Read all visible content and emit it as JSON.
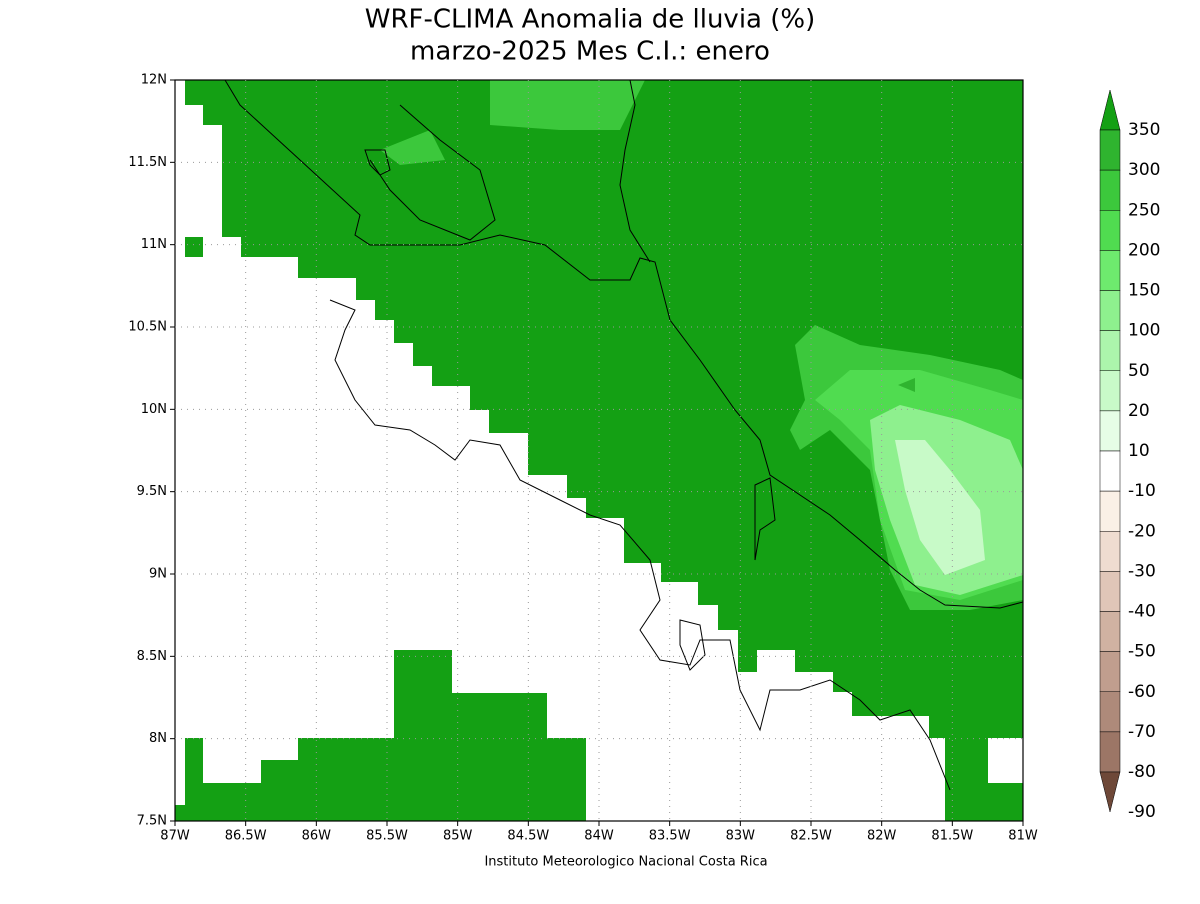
{
  "title": [
    "WRF-CLIMA Anomalia de lluvia (%)",
    "marzo-2025 Mes C.I.: enero"
  ],
  "map": {
    "lon_labels": [
      "87W",
      "86.5W",
      "86W",
      "85.5W",
      "85W",
      "84.5W",
      "84W",
      "83.5W",
      "83W",
      "82.5W",
      "82W",
      "81.5W",
      "81W"
    ],
    "lat_labels": [
      "12N",
      "11.5N",
      "11N",
      "10.5N",
      "10N",
      "9.5N",
      "9N",
      "8.5N",
      "8N",
      "7.5N"
    ]
  },
  "legend": {
    "labels": [
      350,
      300,
      250,
      200,
      150,
      100,
      50,
      20,
      10,
      -10,
      -20,
      -30,
      -40,
      -50,
      -60,
      -70,
      -80,
      -90
    ],
    "colors": [
      "#14a014",
      "#2fb42f",
      "#3cc83c",
      "#50dc50",
      "#6eea6e",
      "#8ef08e",
      "#acf5ac",
      "#c8fac8",
      "#e6fde6",
      "#ffffff",
      "#faf0e6",
      "#efdcd0",
      "#e0c6b8",
      "#d0b2a2",
      "#c09e8e",
      "#ae8a7a",
      "#9c7666",
      "#886252",
      "#6e4838"
    ]
  },
  "footer": "Instituto Meteorologico Nacional Costa Rica"
}
